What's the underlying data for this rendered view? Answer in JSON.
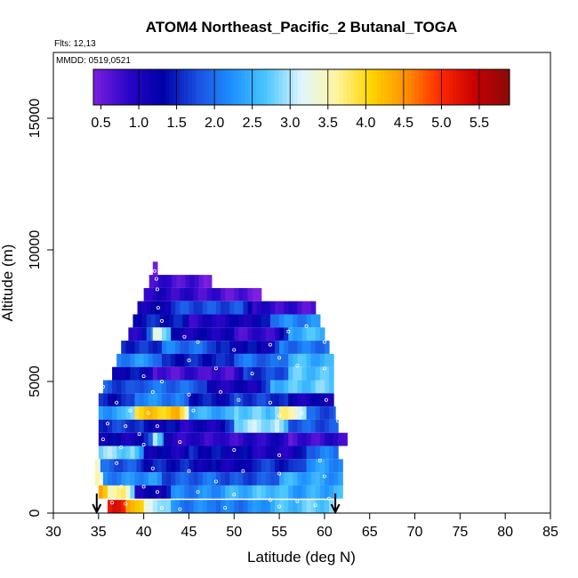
{
  "chart_data": {
    "type": "heatmap",
    "title": "ATOM4 Northeast_Pacific_2 Butanal_TOGA",
    "flights_label": "Flts: 12,13",
    "dates_label": "MMDD: 0519,0521",
    "xlabel": "Latitude (deg N)",
    "ylabel": "Altitude (m)",
    "xlim": [
      30,
      85
    ],
    "ylim": [
      0,
      17500
    ],
    "x_ticks": [
      "30",
      "35",
      "40",
      "45",
      "50",
      "55",
      "60",
      "65",
      "70",
      "75",
      "80",
      "85"
    ],
    "y_ticks": [
      "0",
      "5000",
      "10000",
      "15000"
    ],
    "colorbar": {
      "range": [
        0.4,
        5.9
      ],
      "ticks": [
        "0.5",
        "1.0",
        "1.5",
        "2.0",
        "2.5",
        "3.0",
        "3.5",
        "4.0",
        "4.5",
        "5.0",
        "5.5"
      ],
      "colors": [
        "#7d1fe0",
        "#2a06c8",
        "#0000a8",
        "#1a4fe0",
        "#1e90ff",
        "#4cc8ff",
        "#dff6ff",
        "#fff5a0",
        "#ffd600",
        "#ff9000",
        "#ff2a00",
        "#c80000",
        "#8b0a0a"
      ]
    },
    "rows": [
      {
        "alt": 9300,
        "segments": [
          {
            "lat0": 41.0,
            "lat1": 41.5,
            "v": 0.9
          }
        ]
      },
      {
        "alt": 8800,
        "segments": [
          {
            "lat0": 40.6,
            "lat1": 47.5,
            "v": 0.6
          }
        ]
      },
      {
        "alt": 8300,
        "segments": [
          {
            "lat0": 40.0,
            "lat1": 53.0,
            "v": 0.7
          }
        ]
      },
      {
        "alt": 7800,
        "segments": [
          {
            "lat0": 39.3,
            "lat1": 43.0,
            "v": 1.1
          },
          {
            "lat0": 43.0,
            "lat1": 52.0,
            "v": 1.5
          },
          {
            "lat0": 52.0,
            "lat1": 59.0,
            "v": 0.7
          }
        ]
      },
      {
        "alt": 7300,
        "segments": [
          {
            "lat0": 38.8,
            "lat1": 45.0,
            "v": 1.2
          },
          {
            "lat0": 45.0,
            "lat1": 54.0,
            "v": 1.0
          },
          {
            "lat0": 54.0,
            "lat1": 59.5,
            "v": 1.9
          }
        ]
      },
      {
        "alt": 6800,
        "segments": [
          {
            "lat0": 38.3,
            "lat1": 41.0,
            "v": 1.1
          },
          {
            "lat0": 41.0,
            "lat1": 43.0,
            "v": 3.5
          },
          {
            "lat0": 43.0,
            "lat1": 50.0,
            "v": 1.4
          },
          {
            "lat0": 50.0,
            "lat1": 56.0,
            "v": 1.0
          },
          {
            "lat0": 56.0,
            "lat1": 60.0,
            "v": 2.5
          }
        ]
      },
      {
        "alt": 6300,
        "segments": [
          {
            "lat0": 37.5,
            "lat1": 42.0,
            "v": 1.3
          },
          {
            "lat0": 42.0,
            "lat1": 48.0,
            "v": 1.9
          },
          {
            "lat0": 48.0,
            "lat1": 55.0,
            "v": 1.5
          },
          {
            "lat0": 55.0,
            "lat1": 60.5,
            "v": 2.3
          }
        ]
      },
      {
        "alt": 5800,
        "segments": [
          {
            "lat0": 37.0,
            "lat1": 42.0,
            "v": 2.1
          },
          {
            "lat0": 42.0,
            "lat1": 50.0,
            "v": 1.2
          },
          {
            "lat0": 50.0,
            "lat1": 56.0,
            "v": 1.8
          },
          {
            "lat0": 56.0,
            "lat1": 61.0,
            "v": 2.6
          }
        ]
      },
      {
        "alt": 5300,
        "segments": [
          {
            "lat0": 36.5,
            "lat1": 41.0,
            "v": 1.6
          },
          {
            "lat0": 41.0,
            "lat1": 47.0,
            "v": 0.8
          },
          {
            "lat0": 47.0,
            "lat1": 51.0,
            "v": 0.6
          },
          {
            "lat0": 51.0,
            "lat1": 56.0,
            "v": 1.4
          },
          {
            "lat0": 56.0,
            "lat1": 61.0,
            "v": 2.4
          }
        ]
      },
      {
        "alt": 4800,
        "segments": [
          {
            "lat0": 35.5,
            "lat1": 40.0,
            "v": 1.8
          },
          {
            "lat0": 40.0,
            "lat1": 47.0,
            "v": 2.2
          },
          {
            "lat0": 47.0,
            "lat1": 54.0,
            "v": 1.3
          },
          {
            "lat0": 54.0,
            "lat1": 61.0,
            "v": 2.6
          }
        ]
      },
      {
        "alt": 4300,
        "segments": [
          {
            "lat0": 35.0,
            "lat1": 39.0,
            "v": 1.2
          },
          {
            "lat0": 39.0,
            "lat1": 45.0,
            "v": 2.0
          },
          {
            "lat0": 45.0,
            "lat1": 50.0,
            "v": 1.5
          },
          {
            "lat0": 50.0,
            "lat1": 56.0,
            "v": 1.9
          },
          {
            "lat0": 56.0,
            "lat1": 61.0,
            "v": 1.4
          }
        ]
      },
      {
        "alt": 3800,
        "segments": [
          {
            "lat0": 35.0,
            "lat1": 39.0,
            "v": 2.3
          },
          {
            "lat0": 39.0,
            "lat1": 45.0,
            "v": 3.9
          },
          {
            "lat0": 45.0,
            "lat1": 50.0,
            "v": 2.2
          },
          {
            "lat0": 50.0,
            "lat1": 55.0,
            "v": 2.6
          },
          {
            "lat0": 55.0,
            "lat1": 58.0,
            "v": 3.6
          },
          {
            "lat0": 58.0,
            "lat1": 61.2,
            "v": 2.0
          }
        ]
      },
      {
        "alt": 3300,
        "segments": [
          {
            "lat0": 35.0,
            "lat1": 40.0,
            "v": 1.9
          },
          {
            "lat0": 40.0,
            "lat1": 44.0,
            "v": 1.4
          },
          {
            "lat0": 44.0,
            "lat1": 50.0,
            "v": 1.0
          },
          {
            "lat0": 50.0,
            "lat1": 56.0,
            "v": 2.7
          },
          {
            "lat0": 56.0,
            "lat1": 61.5,
            "v": 1.6
          }
        ]
      },
      {
        "alt": 2800,
        "segments": [
          {
            "lat0": 35.0,
            "lat1": 41.0,
            "v": 1.3
          },
          {
            "lat0": 41.0,
            "lat1": 42.2,
            "v": 3.7
          },
          {
            "lat0": 42.2,
            "lat1": 48.0,
            "v": 0.7
          },
          {
            "lat0": 48.0,
            "lat1": 56.0,
            "v": 1.0
          },
          {
            "lat0": 56.0,
            "lat1": 62.5,
            "v": 0.6
          }
        ]
      },
      {
        "alt": 2300,
        "segments": [
          {
            "lat0": 35.0,
            "lat1": 40.0,
            "v": 2.6
          },
          {
            "lat0": 40.0,
            "lat1": 45.0,
            "v": 1.1
          },
          {
            "lat0": 45.0,
            "lat1": 52.0,
            "v": 1.5
          },
          {
            "lat0": 52.0,
            "lat1": 58.0,
            "v": 1.3
          },
          {
            "lat0": 58.0,
            "lat1": 61.5,
            "v": 2.2
          }
        ]
      },
      {
        "alt": 1800,
        "segments": [
          {
            "lat0": 34.6,
            "lat1": 35.2,
            "v": 4.3
          },
          {
            "lat0": 35.2,
            "lat1": 40.0,
            "v": 2.1
          },
          {
            "lat0": 40.0,
            "lat1": 46.0,
            "v": 1.2
          },
          {
            "lat0": 46.0,
            "lat1": 52.0,
            "v": 1.0
          },
          {
            "lat0": 52.0,
            "lat1": 58.0,
            "v": 1.6
          },
          {
            "lat0": 58.0,
            "lat1": 62.0,
            "v": 2.5
          }
        ]
      },
      {
        "alt": 1300,
        "segments": [
          {
            "lat0": 34.6,
            "lat1": 35.5,
            "v": 3.9
          },
          {
            "lat0": 35.5,
            "lat1": 42.0,
            "v": 2.4
          },
          {
            "lat0": 42.0,
            "lat1": 49.0,
            "v": 1.8
          },
          {
            "lat0": 49.0,
            "lat1": 55.0,
            "v": 1.5
          },
          {
            "lat0": 55.0,
            "lat1": 62.0,
            "v": 2.2
          }
        ]
      },
      {
        "alt": 800,
        "segments": [
          {
            "lat0": 35.0,
            "lat1": 36.0,
            "v": 4.5
          },
          {
            "lat0": 36.0,
            "lat1": 39.0,
            "v": 3.8
          },
          {
            "lat0": 39.0,
            "lat1": 43.0,
            "v": 1.4
          },
          {
            "lat0": 43.0,
            "lat1": 49.0,
            "v": 2.4
          },
          {
            "lat0": 49.0,
            "lat1": 56.0,
            "v": 2.6
          },
          {
            "lat0": 56.0,
            "lat1": 62.0,
            "v": 2.2
          }
        ]
      },
      {
        "alt": 250,
        "segments": [
          {
            "lat0": 36.0,
            "lat1": 38.0,
            "v": 5.3
          },
          {
            "lat0": 38.0,
            "lat1": 40.0,
            "v": 4.6
          },
          {
            "lat0": 40.0,
            "lat1": 43.0,
            "v": 3.3
          },
          {
            "lat0": 43.0,
            "lat1": 48.0,
            "v": 2.4
          },
          {
            "lat0": 48.0,
            "lat1": 54.0,
            "v": 2.3
          },
          {
            "lat0": 54.0,
            "lat1": 61.0,
            "v": 2.6
          }
        ]
      }
    ],
    "sample_points": [
      [
        41.2,
        9200
      ],
      [
        41.4,
        8900
      ],
      [
        41.5,
        8500
      ],
      [
        41.6,
        7800
      ],
      [
        42.0,
        7300
      ],
      [
        44.5,
        6700
      ],
      [
        46.0,
        6500
      ],
      [
        50.0,
        6200
      ],
      [
        54.0,
        6400
      ],
      [
        56.0,
        6900
      ],
      [
        58.0,
        7100
      ],
      [
        60.0,
        6500
      ],
      [
        55.0,
        5900
      ],
      [
        45.0,
        5800
      ],
      [
        48.0,
        5500
      ],
      [
        52.0,
        5300
      ],
      [
        57.0,
        5600
      ],
      [
        60.0,
        5500
      ],
      [
        40.0,
        5200
      ],
      [
        42.0,
        5000
      ],
      [
        35.5,
        4800
      ],
      [
        41.0,
        4600
      ],
      [
        45.0,
        4500
      ],
      [
        48.5,
        4600
      ],
      [
        50.5,
        4300
      ],
      [
        54.0,
        4200
      ],
      [
        60.2,
        4300
      ],
      [
        37.0,
        4200
      ],
      [
        38.5,
        3900
      ],
      [
        40.5,
        3800
      ],
      [
        45.5,
        3900
      ],
      [
        55.0,
        3700
      ],
      [
        57.5,
        3800
      ],
      [
        61.5,
        3500
      ],
      [
        36.0,
        3400
      ],
      [
        38.0,
        3300
      ],
      [
        39.5,
        3000
      ],
      [
        41.5,
        3300
      ],
      [
        35.5,
        2800
      ],
      [
        37.5,
        2500
      ],
      [
        40.0,
        2600
      ],
      [
        44.0,
        2700
      ],
      [
        50.0,
        2400
      ],
      [
        55.0,
        2200
      ],
      [
        59.5,
        2000
      ],
      [
        34.8,
        2200
      ],
      [
        37.0,
        1900
      ],
      [
        41.0,
        1700
      ],
      [
        45.0,
        1600
      ],
      [
        48.0,
        1200
      ],
      [
        51.0,
        1600
      ],
      [
        55.0,
        1500
      ],
      [
        60.0,
        1400
      ],
      [
        35.2,
        1200
      ],
      [
        37.5,
        1000
      ],
      [
        40.0,
        1000
      ],
      [
        41.5,
        800
      ],
      [
        46.0,
        800
      ],
      [
        50.0,
        700
      ],
      [
        54.0,
        500
      ],
      [
        57.0,
        450
      ],
      [
        60.5,
        550
      ],
      [
        36.5,
        400
      ],
      [
        38.0,
        350
      ],
      [
        42.0,
        200
      ],
      [
        44.0,
        150
      ],
      [
        49.0,
        200
      ],
      [
        55.0,
        250
      ],
      [
        59.0,
        300
      ]
    ],
    "arrows_lat": [
      34.8,
      61.2
    ],
    "grid": false,
    "legend": "top-inset"
  }
}
